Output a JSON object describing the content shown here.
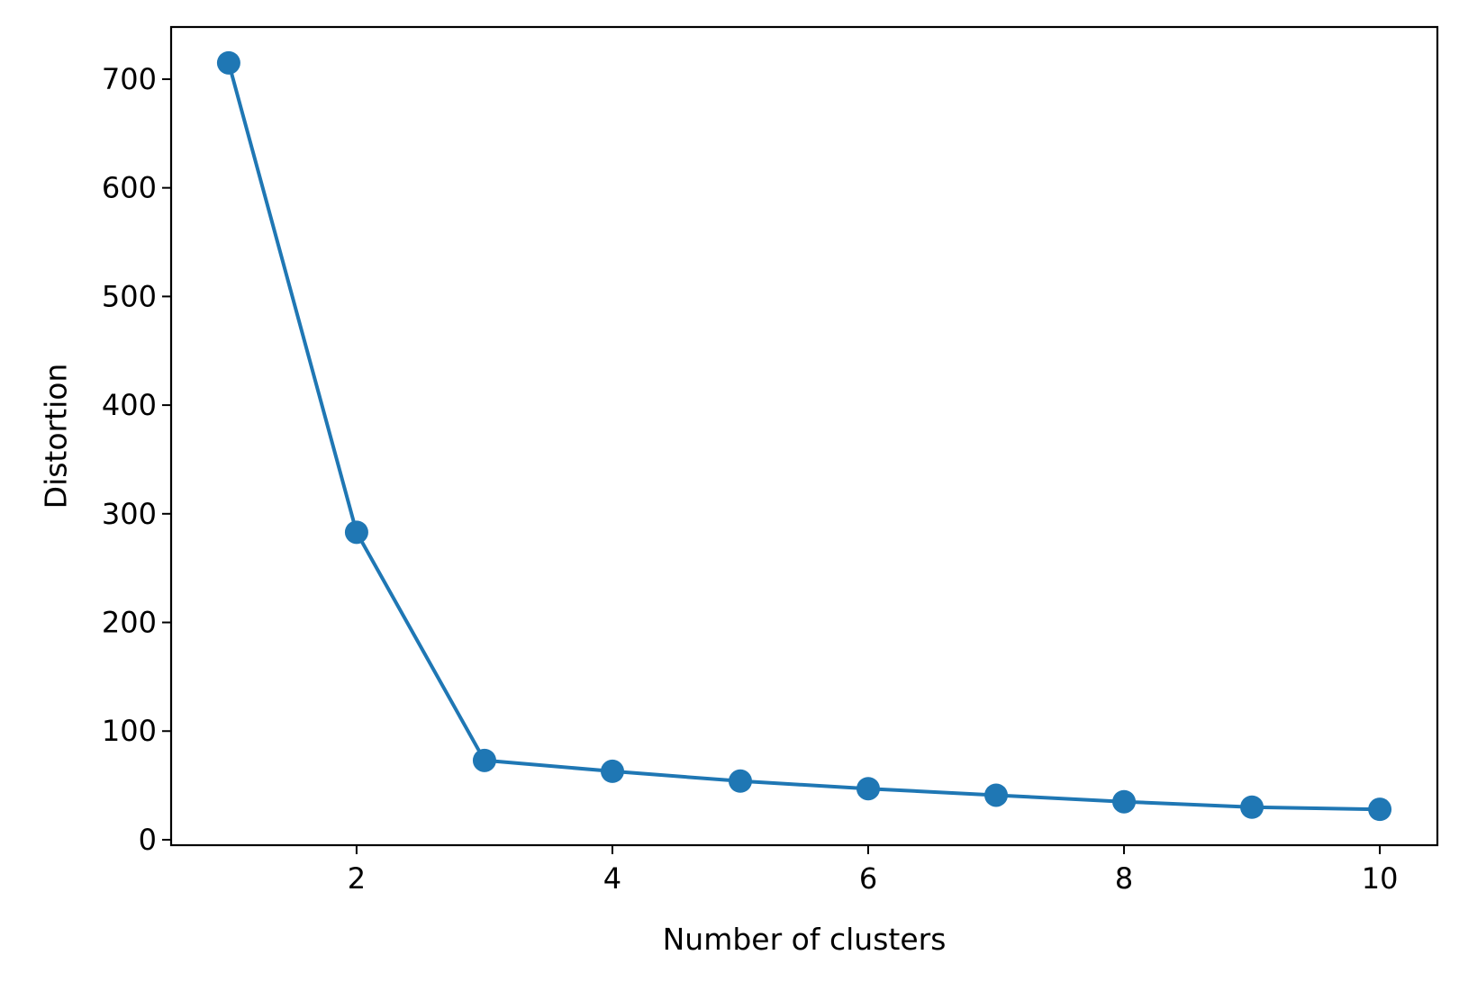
{
  "chart_data": {
    "type": "line",
    "title": "",
    "xlabel": "Number of clusters",
    "ylabel": "Distortion",
    "xlim": [
      0.55,
      10.45
    ],
    "ylim": [
      -5,
      748
    ],
    "xticks": [
      2,
      4,
      6,
      8,
      10
    ],
    "yticks": [
      0,
      100,
      200,
      300,
      400,
      500,
      600,
      700
    ],
    "grid": false,
    "legend": "none",
    "marker": "circle",
    "color": "#1f77b4",
    "series": [
      {
        "x": [
          1,
          2,
          3,
          4,
          5,
          6,
          7,
          8,
          9,
          10
        ],
        "values": [
          715,
          283,
          73,
          63,
          54,
          47,
          41,
          35,
          30,
          28
        ]
      }
    ]
  }
}
